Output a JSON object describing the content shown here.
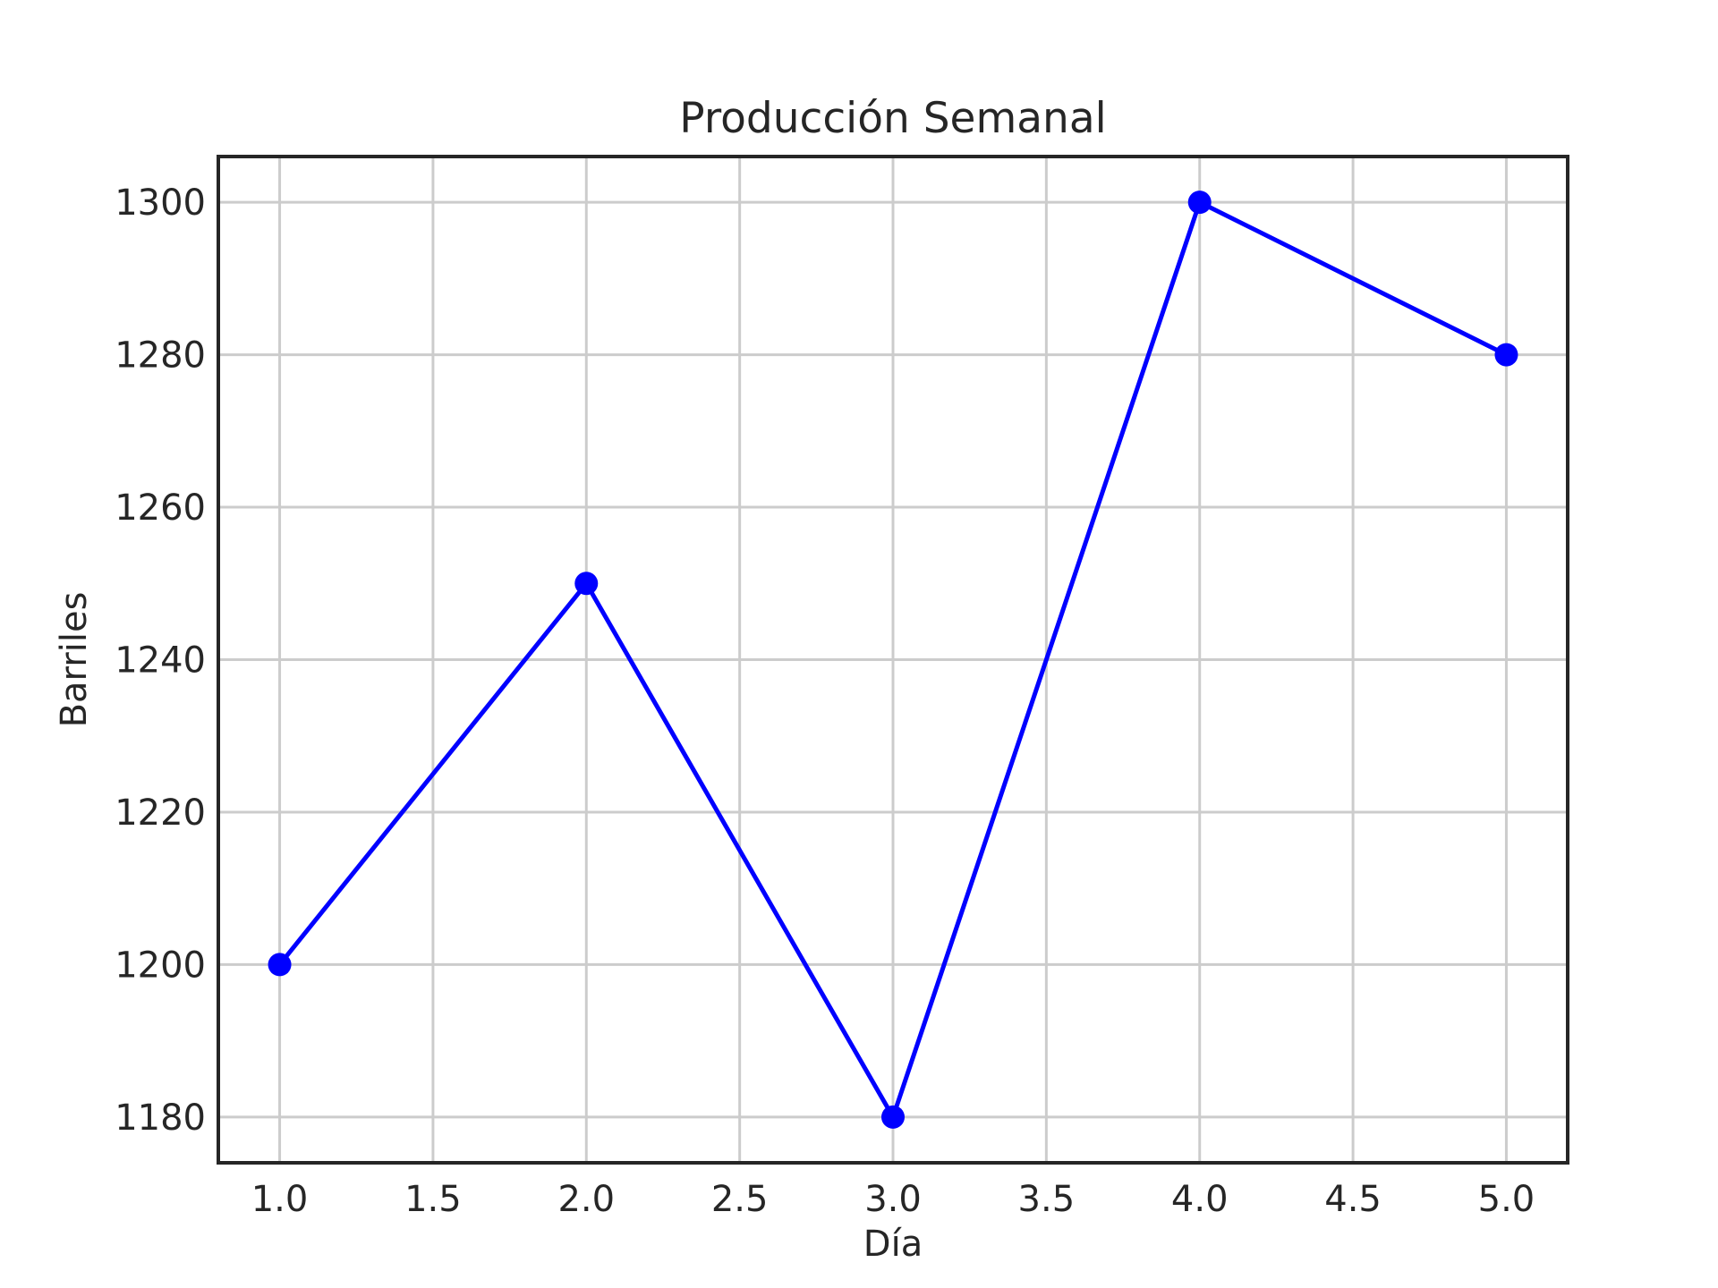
{
  "chart_data": {
    "type": "line",
    "title": "Producción Semanal",
    "xlabel": "Día",
    "ylabel": "Barriles",
    "x": [
      1.0,
      2.0,
      3.0,
      4.0,
      5.0
    ],
    "series": [
      {
        "values": [
          1200,
          1250,
          1180,
          1300,
          1280
        ],
        "color": "#0000ff",
        "marker": "circle"
      }
    ],
    "xlim": [
      0.8,
      5.2
    ],
    "ylim": [
      1174,
      1306
    ],
    "xticks": [
      1.0,
      1.5,
      2.0,
      2.5,
      3.0,
      3.5,
      4.0,
      4.5,
      5.0
    ],
    "xtick_labels": [
      "1.0",
      "1.5",
      "2.0",
      "2.5",
      "3.0",
      "3.5",
      "4.0",
      "4.5",
      "5.0"
    ],
    "yticks": [
      1180,
      1200,
      1220,
      1240,
      1260,
      1280,
      1300
    ],
    "ytick_labels": [
      "1180",
      "1200",
      "1220",
      "1240",
      "1260",
      "1280",
      "1300"
    ],
    "grid": true,
    "legend": false
  }
}
